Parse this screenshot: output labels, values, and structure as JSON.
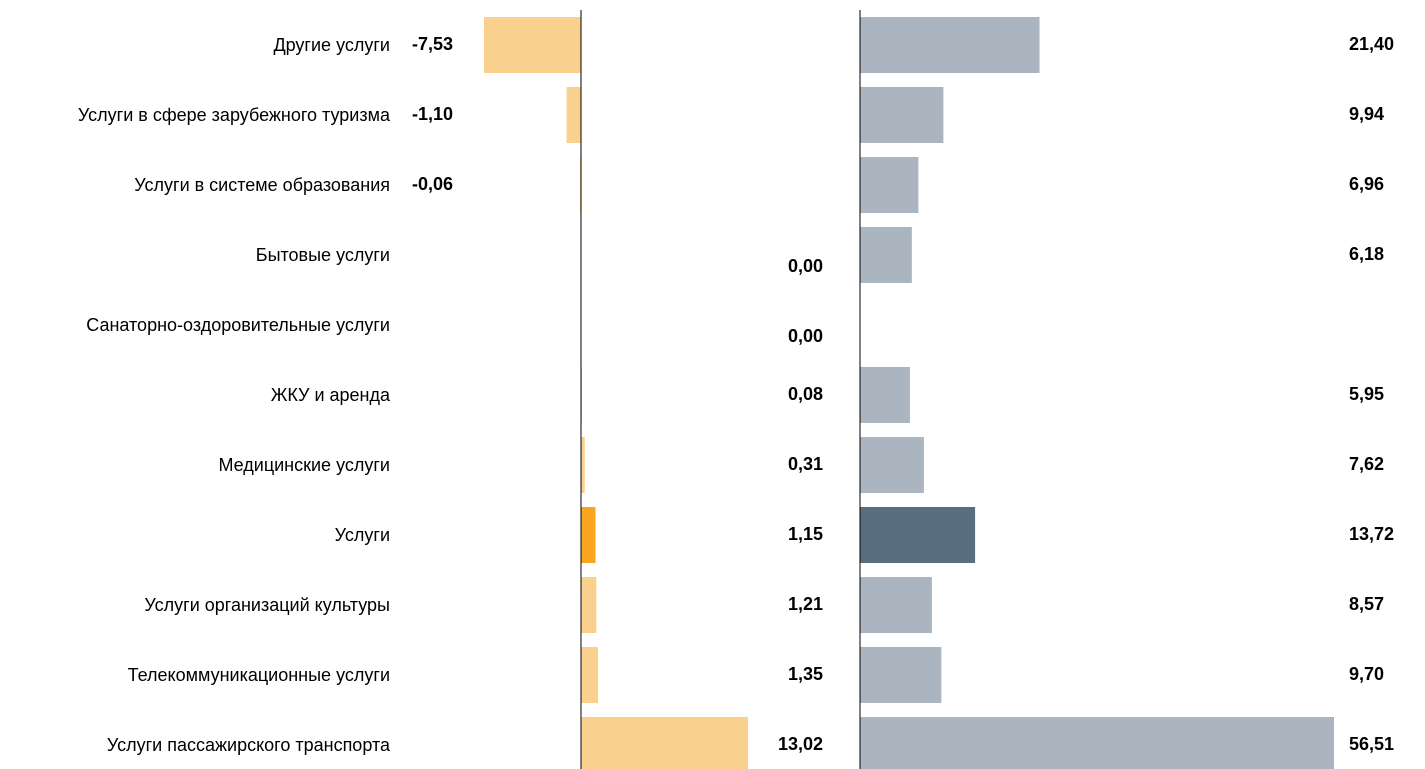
{
  "chart_data": {
    "type": "bar",
    "categories": [
      "Другие услуги",
      "Услуги в сфере зарубежного туризма",
      "Услуги в системе образования",
      "Бытовые услуги",
      "Санаторно-оздоровительные услуги",
      "ЖКУ и аренда",
      "Медицинские услуги",
      "Услуги",
      "Услуги организаций культуры",
      "Телекоммуникационные услуги",
      "Услуги пассажирского транспорта"
    ],
    "series": [
      {
        "values": [
          -7.53,
          -1.1,
          -0.06,
          0.0,
          0.0,
          0.08,
          0.31,
          1.15,
          1.21,
          1.35,
          13.02
        ],
        "value_labels": [
          "-7,53",
          "-1,10",
          "-0,06",
          "0,00",
          "0,00",
          "0,08",
          "0,31",
          "1,15",
          "1,21",
          "1,35",
          "13,02"
        ],
        "colors": [
          "#fad08e",
          "#fad08e",
          "#fad08e",
          "#fad08e",
          "#fad08e",
          "#fad08e",
          "#fad08e",
          "#f9a520",
          "#fad08e",
          "#fad08e",
          "#fad08e"
        ]
      },
      {
        "values": [
          21.4,
          9.94,
          6.96,
          6.18,
          null,
          5.95,
          7.62,
          13.72,
          8.57,
          9.7,
          56.51
        ],
        "value_labels": [
          "21,40",
          "9,94",
          "6,96",
          "6,18",
          null,
          "5,95",
          "7,62",
          "13,72",
          "8,57",
          "9,70",
          "56,51"
        ],
        "colors": [
          "#abb5bf",
          "#abb5bf",
          "#abb5bf",
          "#abb5bf",
          "#abb5bf",
          "#abb5bf",
          "#abb5bf",
          "#5a6e82",
          "#abb5bf",
          "#abb5bf",
          "#abb5bf"
        ]
      }
    ]
  }
}
